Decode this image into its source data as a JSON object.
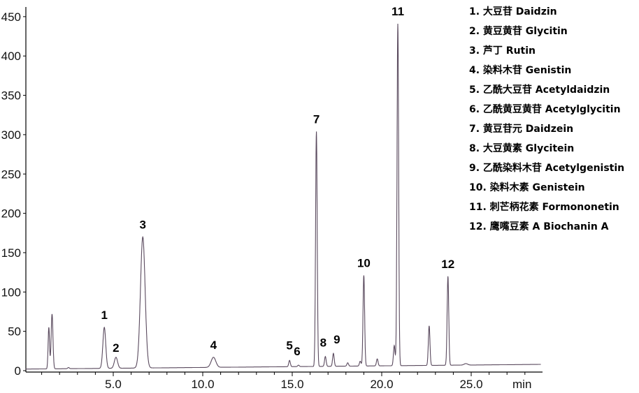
{
  "chart_data": {
    "type": "line",
    "xlabel": "min",
    "ylabel": "",
    "xlim": [
      0,
      28.9
    ],
    "ylim": [
      0,
      460
    ],
    "x_ticks": [
      "5.0",
      "10.0",
      "15.0",
      "20.0",
      "25.0"
    ],
    "x_tick_values": [
      5,
      10,
      15,
      20,
      25
    ],
    "y_ticks": [
      "0",
      "50",
      "100",
      "150",
      "200",
      "250",
      "300",
      "350",
      "400",
      "450"
    ],
    "y_tick_values": [
      0,
      50,
      100,
      150,
      200,
      250,
      300,
      350,
      400,
      450
    ],
    "grid": false,
    "line_color": "#5a4a5e",
    "peaks": [
      {
        "label": "1",
        "rt": 4.5,
        "height": 55
      },
      {
        "label": "2",
        "rt": 5.15,
        "height": 17
      },
      {
        "label": "3",
        "rt": 6.65,
        "height": 170
      },
      {
        "label": "4",
        "rt": 10.6,
        "height": 17
      },
      {
        "label": "5",
        "rt": 14.85,
        "height": 13
      },
      {
        "label": "6",
        "rt": 15.35,
        "height": 7
      },
      {
        "label": "7",
        "rt": 16.35,
        "height": 304
      },
      {
        "label": "8",
        "rt": 16.85,
        "height": 18
      },
      {
        "label": "9",
        "rt": 17.3,
        "height": 22
      },
      {
        "label": "10",
        "rt": 19.0,
        "height": 121
      },
      {
        "label": "11",
        "rt": 20.9,
        "height": 441
      },
      {
        "label": "12",
        "rt": 23.7,
        "height": 120
      }
    ],
    "unlabeled_peaks": [
      {
        "rt": 1.4,
        "height": 55
      },
      {
        "rt": 1.58,
        "height": 72
      },
      {
        "rt": 2.5,
        "height": 4
      },
      {
        "rt": 18.1,
        "height": 10
      },
      {
        "rt": 18.8,
        "height": 12
      },
      {
        "rt": 19.75,
        "height": 15
      },
      {
        "rt": 20.7,
        "height": 32
      },
      {
        "rt": 22.65,
        "height": 57
      },
      {
        "rt": 24.7,
        "height": 9
      }
    ],
    "legend": [
      "1. 大豆苷 Daidzin",
      "2. 黄豆黄苷 Glycitin",
      "3. 芦丁 Rutin",
      "4. 染料木苷 Genistin",
      "5. 乙酰大豆苷 Acetyldaidzin",
      "6. 乙酰黄豆黄苷 Acetylglycitin",
      "7. 黄豆苷元 Daidzein",
      "8. 大豆黄素 Glycitein",
      "9. 乙酰染料木苷 Acetylgenistin",
      "10. 染料木素 Genistein",
      "11. 刺芒柄花素 Formononetin",
      "12. 鹰嘴豆素 A Biochanin A"
    ],
    "legend_placement": "top-right"
  }
}
